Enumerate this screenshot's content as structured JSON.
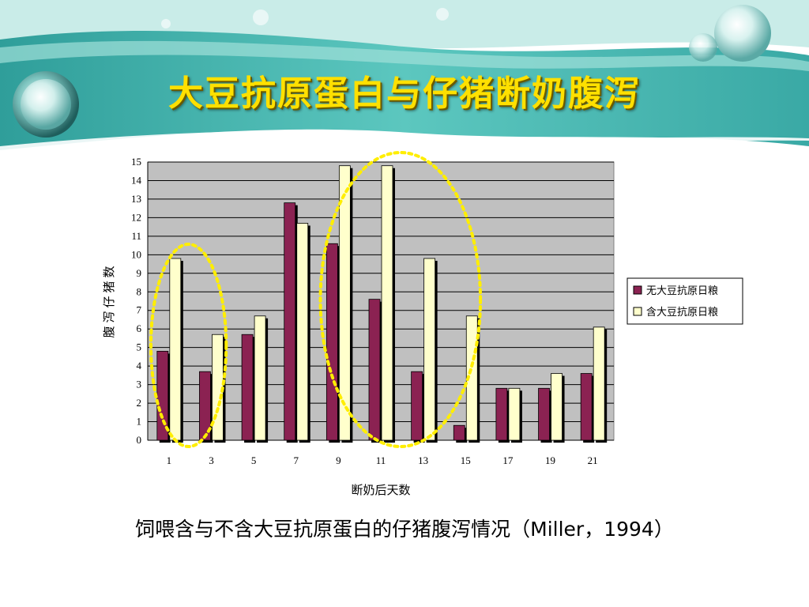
{
  "slide": {
    "title": "大豆抗原蛋白与仔猪断奶腹泻",
    "caption": "饲喂含与不含大豆抗原蛋白的仔猪腹泻情况（Miller，1994）"
  },
  "colors": {
    "banner_teal": "#4cb8b2",
    "title_yellow": "#ffe000",
    "plot_bg": "#c0c0c0",
    "series1": "#8b2252",
    "series2": "#ffffcc",
    "highlight": "#ffee00"
  },
  "chart_data": {
    "type": "bar",
    "title": "",
    "xlabel": "断奶后天数",
    "ylabel": "腹泻仔猪数",
    "categories": [
      "1",
      "3",
      "5",
      "7",
      "9",
      "11",
      "13",
      "15",
      "17",
      "19",
      "21"
    ],
    "ylim": [
      0,
      15
    ],
    "yticks": [
      "0",
      "1",
      "2",
      "3",
      "4",
      "5",
      "6",
      "7",
      "8",
      "9",
      "10",
      "11",
      "12",
      "13",
      "14",
      "15"
    ],
    "grid": true,
    "legend": "right",
    "series": [
      {
        "name": "无大豆抗原日粮",
        "color": "#8b2252",
        "values": [
          4.8,
          3.7,
          5.7,
          12.8,
          10.6,
          7.6,
          3.7,
          0.8,
          2.8,
          2.8,
          3.6
        ]
      },
      {
        "name": "含大豆抗原日粮",
        "color": "#ffffcc",
        "values": [
          9.8,
          5.7,
          6.7,
          11.7,
          14.8,
          14.8,
          9.8,
          6.7,
          2.8,
          3.6,
          6.1
        ]
      }
    ],
    "annotations": [
      {
        "type": "dotted-ellipse",
        "categories": [
          "1",
          "3"
        ]
      },
      {
        "type": "dotted-ellipse",
        "categories": [
          "9",
          "15"
        ]
      }
    ]
  }
}
